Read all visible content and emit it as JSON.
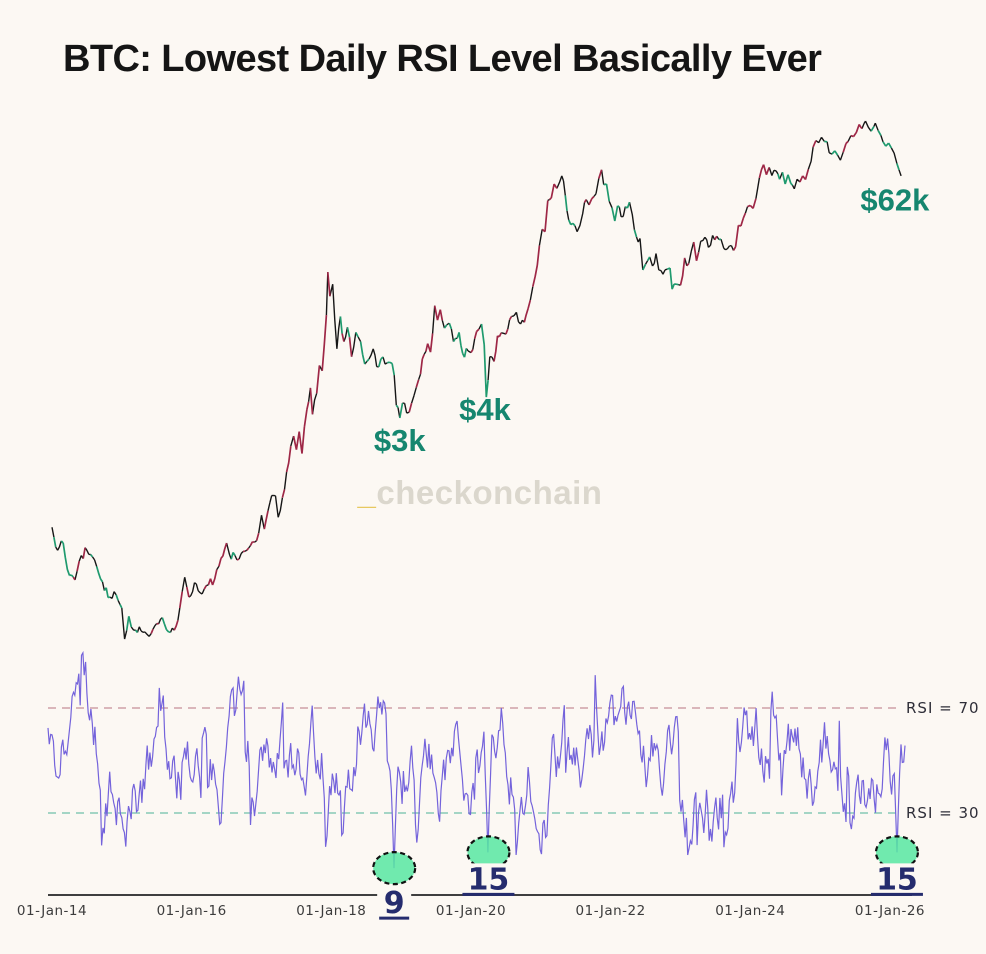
{
  "title": "BTC: Lowest Daily RSI Level Basically Ever",
  "watermark": {
    "prefix": "_",
    "text": "checkonchain"
  },
  "colors": {
    "background": "#fcf8f3",
    "price_line": "#161616",
    "price_up_segments": "#9e2746",
    "price_down_segments": "#1f9a6e",
    "rsi_line": "#7463db",
    "rsi_overbought_line": "#cfa0a8",
    "rsi_oversold_line": "#86c9b6",
    "annotation_teal": "#16866f",
    "marker_fill": "#57e7a1",
    "marker_border": "#111111",
    "marker_number": "#252c6e",
    "axis_line": "#3f3f3f",
    "tick_label": "#3c3c3c",
    "rsi_label": "#2e2e38",
    "watermark_prefix": "#e7c860",
    "watermark_text": "#dbd7cd"
  },
  "chart_data": {
    "type": "line",
    "title": "BTC: Lowest Daily RSI Level Basically Ever",
    "xlabel": "",
    "ylabel": "",
    "legend": "none",
    "grid": false,
    "x_axis": {
      "tick_labels": [
        "01-Jan-14",
        "01-Jan-16",
        "01-Jan-18",
        "01-Jan-20",
        "01-Jan-22",
        "01-Jan-24",
        "01-Jan-26"
      ],
      "tick_years": [
        2014,
        2016,
        2018,
        2020,
        2022,
        2024,
        2026
      ]
    },
    "price_panel": {
      "series_name": "BTC price (USD)",
      "scale": "log",
      "annotations": [
        {
          "label": "$3k",
          "t": 2018.98,
          "anchor_price": 2400
        },
        {
          "label": "$4k",
          "t": 2020.2,
          "anchor_price": 3500
        },
        {
          "label": "$62k",
          "t": 2026.07,
          "anchor_price": 46000
        }
      ],
      "keypoints": [
        [
          2014.0,
          850
        ],
        [
          2014.08,
          640
        ],
        [
          2014.16,
          700
        ],
        [
          2014.25,
          470
        ],
        [
          2014.33,
          445
        ],
        [
          2014.42,
          600
        ],
        [
          2014.5,
          640
        ],
        [
          2014.58,
          590
        ],
        [
          2014.67,
          480
        ],
        [
          2014.75,
          390
        ],
        [
          2014.83,
          360
        ],
        [
          2014.92,
          370
        ],
        [
          2015.0,
          315
        ],
        [
          2015.04,
          215
        ],
        [
          2015.1,
          285
        ],
        [
          2015.17,
          240
        ],
        [
          2015.25,
          250
        ],
        [
          2015.33,
          235
        ],
        [
          2015.42,
          230
        ],
        [
          2015.5,
          260
        ],
        [
          2015.58,
          280
        ],
        [
          2015.67,
          235
        ],
        [
          2015.75,
          240
        ],
        [
          2015.83,
          315
        ],
        [
          2015.9,
          460
        ],
        [
          2015.96,
          360
        ],
        [
          2016.04,
          430
        ],
        [
          2016.12,
          380
        ],
        [
          2016.21,
          415
        ],
        [
          2016.33,
          450
        ],
        [
          2016.42,
          580
        ],
        [
          2016.5,
          700
        ],
        [
          2016.54,
          610
        ],
        [
          2016.62,
          600
        ],
        [
          2016.71,
          615
        ],
        [
          2016.79,
          640
        ],
        [
          2016.87,
          710
        ],
        [
          2016.96,
          790
        ],
        [
          2017.0,
          985
        ],
        [
          2017.04,
          830
        ],
        [
          2017.12,
          1150
        ],
        [
          2017.2,
          1250
        ],
        [
          2017.24,
          960
        ],
        [
          2017.33,
          1350
        ],
        [
          2017.42,
          2300
        ],
        [
          2017.46,
          2600
        ],
        [
          2017.5,
          2200
        ],
        [
          2017.54,
          2750
        ],
        [
          2017.58,
          2100
        ],
        [
          2017.65,
          3600
        ],
        [
          2017.7,
          4700
        ],
        [
          2017.73,
          3400
        ],
        [
          2017.79,
          4400
        ],
        [
          2017.83,
          6200
        ],
        [
          2017.87,
          5800
        ],
        [
          2017.9,
          8000
        ],
        [
          2017.93,
          11500
        ],
        [
          2017.95,
          19500
        ],
        [
          2017.98,
          14500
        ],
        [
          2018.02,
          16800
        ],
        [
          2018.08,
          7600
        ],
        [
          2018.13,
          11300
        ],
        [
          2018.18,
          8300
        ],
        [
          2018.23,
          9900
        ],
        [
          2018.29,
          6900
        ],
        [
          2018.35,
          9300
        ],
        [
          2018.42,
          8300
        ],
        [
          2018.48,
          6300
        ],
        [
          2018.54,
          6700
        ],
        [
          2018.6,
          7600
        ],
        [
          2018.65,
          6100
        ],
        [
          2018.71,
          6700
        ],
        [
          2018.77,
          6300
        ],
        [
          2018.83,
          6450
        ],
        [
          2018.87,
          6350
        ],
        [
          2018.9,
          5500
        ],
        [
          2018.93,
          3800
        ],
        [
          2018.98,
          3250
        ],
        [
          2019.02,
          3900
        ],
        [
          2019.08,
          3450
        ],
        [
          2019.15,
          3900
        ],
        [
          2019.25,
          5200
        ],
        [
          2019.33,
          7100
        ],
        [
          2019.38,
          8100
        ],
        [
          2019.42,
          7300
        ],
        [
          2019.48,
          12900
        ],
        [
          2019.52,
          10800
        ],
        [
          2019.56,
          12300
        ],
        [
          2019.62,
          9800
        ],
        [
          2019.69,
          10400
        ],
        [
          2019.75,
          8300
        ],
        [
          2019.83,
          9300
        ],
        [
          2019.88,
          7200
        ],
        [
          2019.96,
          7400
        ],
        [
          2020.0,
          7250
        ],
        [
          2020.08,
          9400
        ],
        [
          2020.15,
          10300
        ],
        [
          2020.19,
          8000
        ],
        [
          2020.22,
          4200
        ],
        [
          2020.27,
          6900
        ],
        [
          2020.33,
          6500
        ],
        [
          2020.38,
          8900
        ],
        [
          2020.46,
          9200
        ],
        [
          2020.5,
          9100
        ],
        [
          2020.58,
          11300
        ],
        [
          2020.65,
          11900
        ],
        [
          2020.71,
          10300
        ],
        [
          2020.79,
          11500
        ],
        [
          2020.85,
          13800
        ],
        [
          2020.92,
          18500
        ],
        [
          2020.98,
          27000
        ],
        [
          2021.02,
          33000
        ],
        [
          2021.06,
          32000
        ],
        [
          2021.1,
          47000
        ],
        [
          2021.15,
          48500
        ],
        [
          2021.19,
          57500
        ],
        [
          2021.23,
          54500
        ],
        [
          2021.27,
          59000
        ],
        [
          2021.3,
          63500
        ],
        [
          2021.35,
          50000
        ],
        [
          2021.4,
          37000
        ],
        [
          2021.46,
          35500
        ],
        [
          2021.52,
          32000
        ],
        [
          2021.56,
          34500
        ],
        [
          2021.6,
          40000
        ],
        [
          2021.65,
          47500
        ],
        [
          2021.69,
          44500
        ],
        [
          2021.73,
          48000
        ],
        [
          2021.79,
          51000
        ],
        [
          2021.83,
          61500
        ],
        [
          2021.87,
          68500
        ],
        [
          2021.9,
          57000
        ],
        [
          2021.94,
          57500
        ],
        [
          2021.98,
          46500
        ],
        [
          2022.02,
          43000
        ],
        [
          2022.06,
          36500
        ],
        [
          2022.1,
          44000
        ],
        [
          2022.15,
          38500
        ],
        [
          2022.21,
          43500
        ],
        [
          2022.27,
          46000
        ],
        [
          2022.31,
          39500
        ],
        [
          2022.37,
          30000
        ],
        [
          2022.42,
          29500
        ],
        [
          2022.46,
          20000
        ],
        [
          2022.5,
          21500
        ],
        [
          2022.56,
          23500
        ],
        [
          2022.6,
          21000
        ],
        [
          2022.65,
          24500
        ],
        [
          2022.69,
          20000
        ],
        [
          2022.75,
          19000
        ],
        [
          2022.81,
          20200
        ],
        [
          2022.85,
          20500
        ],
        [
          2022.88,
          15800
        ],
        [
          2022.94,
          16800
        ],
        [
          2023.0,
          16600
        ],
        [
          2023.06,
          23200
        ],
        [
          2023.12,
          21700
        ],
        [
          2023.19,
          28200
        ],
        [
          2023.23,
          22400
        ],
        [
          2023.29,
          28500
        ],
        [
          2023.35,
          29900
        ],
        [
          2023.4,
          26400
        ],
        [
          2023.46,
          30600
        ],
        [
          2023.52,
          30300
        ],
        [
          2023.58,
          29200
        ],
        [
          2023.62,
          26100
        ],
        [
          2023.67,
          25900
        ],
        [
          2023.73,
          27000
        ],
        [
          2023.79,
          26600
        ],
        [
          2023.83,
          34600
        ],
        [
          2023.9,
          37800
        ],
        [
          2023.96,
          43500
        ],
        [
          2024.0,
          44200
        ],
        [
          2024.04,
          42600
        ],
        [
          2024.08,
          48000
        ],
        [
          2024.13,
          62000
        ],
        [
          2024.19,
          73000
        ],
        [
          2024.23,
          64500
        ],
        [
          2024.27,
          70500
        ],
        [
          2024.31,
          63800
        ],
        [
          2024.37,
          67500
        ],
        [
          2024.42,
          61000
        ],
        [
          2024.46,
          66500
        ],
        [
          2024.5,
          57500
        ],
        [
          2024.54,
          64500
        ],
        [
          2024.58,
          58000
        ],
        [
          2024.63,
          54200
        ],
        [
          2024.67,
          61000
        ],
        [
          2024.71,
          58900
        ],
        [
          2024.75,
          63500
        ],
        [
          2024.79,
          60800
        ],
        [
          2024.83,
          68800
        ],
        [
          2024.87,
          76000
        ],
        [
          2024.9,
          90500
        ],
        [
          2024.94,
          98000
        ],
        [
          2024.98,
          95500
        ],
        [
          2025.02,
          102000
        ],
        [
          2025.06,
          97000
        ],
        [
          2025.1,
          96500
        ],
        [
          2025.13,
          84500
        ],
        [
          2025.17,
          83000
        ],
        [
          2025.21,
          86500
        ],
        [
          2025.25,
          82000
        ],
        [
          2025.29,
          77000
        ],
        [
          2025.33,
          85000
        ],
        [
          2025.37,
          94500
        ],
        [
          2025.4,
          97000
        ],
        [
          2025.44,
          104000
        ],
        [
          2025.48,
          103000
        ],
        [
          2025.52,
          108500
        ],
        [
          2025.56,
          119500
        ],
        [
          2025.58,
          116000
        ],
        [
          2025.6,
          113500
        ],
        [
          2025.63,
          121000
        ],
        [
          2025.65,
          124500
        ],
        [
          2025.69,
          115500
        ],
        [
          2025.73,
          110000
        ],
        [
          2025.77,
          116500
        ],
        [
          2025.79,
          121500
        ],
        [
          2025.83,
          111000
        ],
        [
          2025.87,
          104500
        ],
        [
          2025.9,
          96500
        ],
        [
          2025.94,
          91500
        ],
        [
          2025.98,
          95000
        ],
        [
          2026.02,
          89500
        ],
        [
          2026.06,
          84000
        ],
        [
          2026.1,
          74000
        ],
        [
          2026.13,
          68500
        ],
        [
          2026.16,
          63500
        ]
      ]
    },
    "rsi_panel": {
      "series_name": "BTC daily RSI",
      "range": [
        0,
        100
      ],
      "overbought": {
        "label": "RSI = 70",
        "value": 70
      },
      "oversold": {
        "label": "RSI = 30",
        "value": 30
      },
      "seed": 11,
      "lows": [
        {
          "t": 2018.9,
          "value": 9,
          "label": "9"
        },
        {
          "t": 2020.25,
          "value": 15,
          "label": "15"
        },
        {
          "t": 2026.1,
          "value": 15,
          "label": "15"
        }
      ]
    }
  }
}
